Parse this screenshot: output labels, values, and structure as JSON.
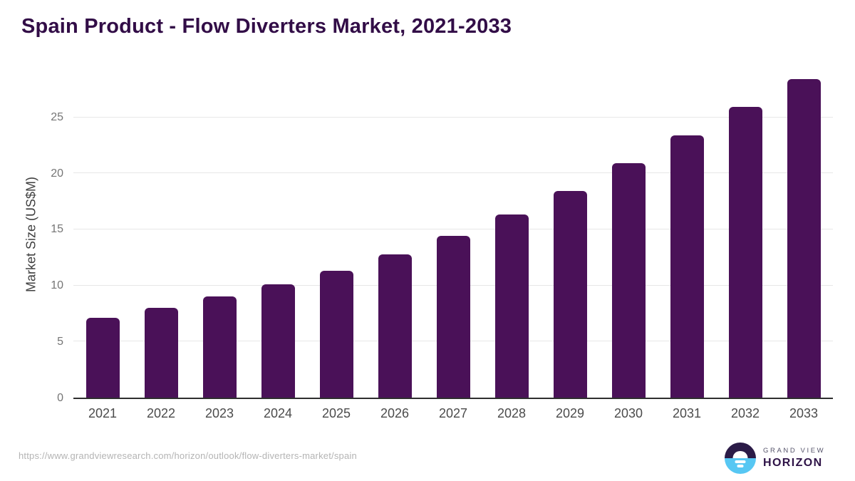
{
  "page": {
    "title": "Spain Product - Flow Diverters Market, 2021-2033",
    "footer": {
      "source_url": "https://www.grandviewresearch.com/horizon/outlook/flow-diverters-market/spain",
      "logo_line1": "GRAND VIEW",
      "logo_line2": "HORIZON"
    }
  },
  "colors": {
    "title-color": "#320d47",
    "bar-color": "#4a1158",
    "grid-color": "#e7e7e7",
    "axis-color": "#2f2f2f",
    "ytick-color": "#757575",
    "xtick-color": "#4b4b4b",
    "axis-title-color": "#3f3f3f",
    "url-color": "#b4b4b4",
    "logo-dark": "#2b1b47",
    "logo-blue": "#57c7f3",
    "logo-gray": "#55536a",
    "logo-purple": "#2e1347"
  },
  "chart_data": {
    "type": "bar",
    "title": "Spain Product - Flow Diverters Market, 2021-2033",
    "categories": [
      "2021",
      "2022",
      "2023",
      "2024",
      "2025",
      "2026",
      "2027",
      "2028",
      "2029",
      "2030",
      "2031",
      "2032",
      "2033"
    ],
    "values": [
      7.1,
      8.0,
      9.0,
      10.1,
      11.3,
      12.8,
      14.4,
      16.3,
      18.4,
      20.9,
      23.4,
      25.9,
      28.4
    ],
    "xlabel": "",
    "ylabel": "Market Size (US$M)",
    "yticks": [
      0,
      5,
      10,
      15,
      20,
      25
    ],
    "ylim": [
      0,
      29.1
    ],
    "grid": "horizontal",
    "legend": false,
    "bar_color": "#4a1158"
  }
}
